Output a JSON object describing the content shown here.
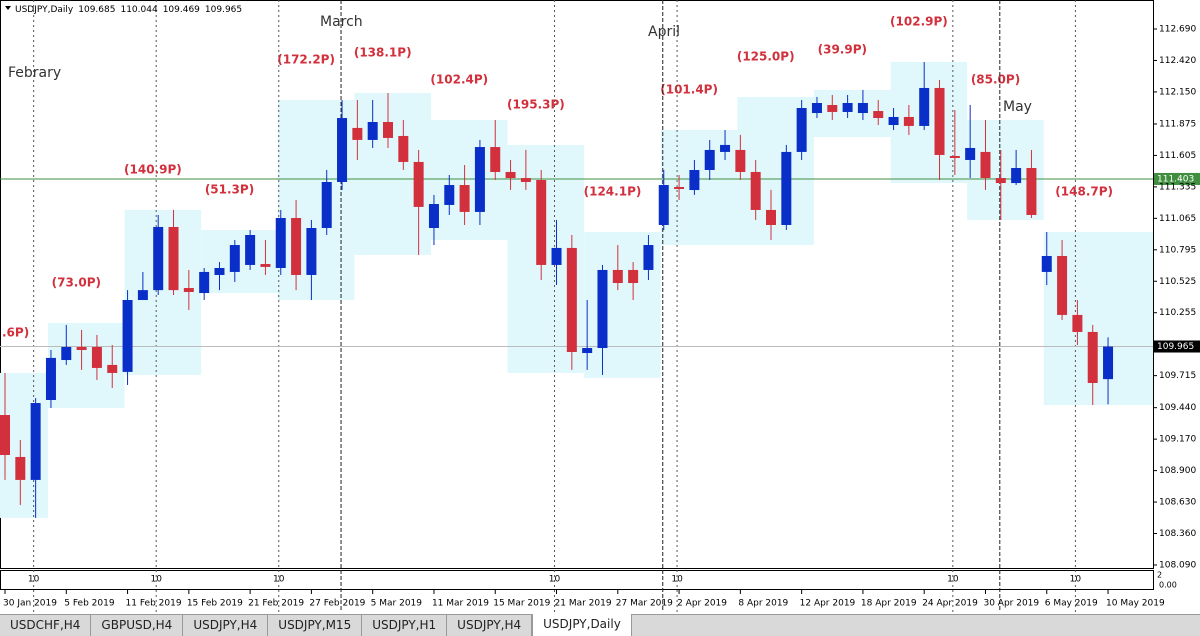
{
  "header": {
    "symbol": "USDJPY,Daily"
  },
  "chart_data": {
    "type": "candlestick",
    "categories": [
      "30 Jan 2019",
      null,
      null,
      null,
      "5 Feb 2019",
      null,
      null,
      null,
      "11 Feb 2019",
      null,
      null,
      null,
      "15 Feb 2019",
      null,
      null,
      null,
      "21 Feb 2019",
      null,
      null,
      null,
      "27 Feb 2019",
      null,
      null,
      null,
      "5 Mar 2019",
      null,
      null,
      null,
      "11 Mar 2019",
      null,
      null,
      null,
      "15 Mar 2019",
      null,
      null,
      null,
      "21 Mar 2019",
      null,
      null,
      null,
      "27 Mar 2019",
      null,
      null,
      null,
      "2 Apr 2019",
      null,
      null,
      null,
      "8 Apr 2019",
      null,
      null,
      null,
      "12 Apr 2019",
      null,
      null,
      null,
      "18 Apr 2019",
      null,
      null,
      null,
      "24 Apr 2019",
      null,
      null,
      null,
      "30 Apr 2019",
      null,
      null,
      null,
      "6 May 2019",
      null,
      null,
      null,
      "10 May 2019"
    ],
    "open": [
      109.377,
      109.017,
      108.82,
      109.506,
      109.849,
      109.961,
      109.961,
      109.807,
      109.747,
      110.364,
      110.449,
      110.991,
      110.467,
      110.424,
      110.579,
      110.605,
      110.665,
      110.673,
      110.639,
      111.068,
      110.579,
      110.982,
      111.377,
      111.841,
      111.738,
      111.892,
      111.772,
      111.549,
      110.982,
      111.18,
      111.351,
      111.12,
      111.677,
      111.463,
      111.411,
      111.394,
      110.665,
      110.811,
      109.909,
      109.952,
      110.622,
      110.622,
      110.622,
      111.008,
      111.334,
      111.308,
      111.48,
      111.635,
      111.652,
      111.463,
      111.137,
      111.008,
      111.635,
      111.969,
      112.038,
      111.978,
      111.969,
      111.986,
      111.866,
      111.935,
      111.858,
      112.184,
      111.6,
      111.566,
      111.635,
      111.411,
      111.368,
      111.497,
      110.605,
      110.742,
      110.236,
      110.09,
      109.685
    ],
    "high": [
      109.738,
      109.163,
      109.523,
      109.935,
      110.15,
      110.107,
      110.064,
      109.978,
      110.449,
      110.605,
      111.094,
      111.137,
      110.622,
      110.639,
      110.69,
      110.879,
      110.965,
      110.879,
      111.137,
      111.223,
      111.051,
      111.48,
      112.081,
      112.081,
      112.081,
      112.141,
      111.909,
      111.652,
      111.266,
      111.437,
      111.523,
      111.738,
      111.909,
      111.566,
      111.652,
      111.48,
      111.051,
      110.922,
      110.364,
      110.665,
      110.836,
      110.69,
      110.922,
      111.48,
      111.437,
      111.566,
      111.738,
      111.823,
      111.781,
      111.566,
      111.309,
      111.695,
      112.081,
      112.107,
      112.124,
      112.124,
      112.167,
      112.081,
      112.012,
      112.038,
      112.407,
      112.252,
      111.995,
      112.038,
      111.909,
      111.652,
      111.652,
      111.652,
      110.948,
      110.879,
      110.364,
      110.15,
      110.044
    ],
    "low": [
      108.82,
      108.605,
      108.494,
      109.437,
      109.807,
      109.764,
      109.678,
      109.609,
      109.635,
      110.364,
      110.407,
      110.407,
      110.279,
      110.364,
      110.449,
      110.519,
      110.622,
      110.579,
      110.579,
      110.449,
      110.364,
      110.922,
      111.309,
      111.566,
      111.669,
      111.669,
      111.48,
      110.751,
      110.836,
      111.094,
      111.008,
      111.008,
      111.394,
      111.309,
      111.309,
      110.536,
      110.493,
      109.764,
      109.764,
      109.721,
      110.449,
      110.364,
      110.536,
      110.965,
      111.223,
      111.266,
      111.394,
      111.566,
      111.394,
      111.051,
      110.879,
      110.965,
      111.566,
      111.926,
      111.909,
      111.926,
      111.909,
      111.866,
      111.823,
      111.781,
      111.823,
      111.394,
      111.437,
      111.411,
      111.309,
      111.051,
      111.351,
      111.068,
      110.493,
      110.193,
      109.978,
      109.463,
      109.469
    ],
    "close": [
      109.034,
      108.82,
      109.48,
      109.867,
      109.961,
      109.935,
      109.781,
      109.738,
      110.364,
      110.449,
      110.991,
      110.449,
      110.433,
      110.605,
      110.639,
      110.836,
      110.922,
      110.648,
      111.068,
      110.579,
      110.982,
      111.377,
      111.926,
      111.738,
      111.892,
      111.755,
      111.549,
      111.163,
      111.188,
      111.351,
      111.12,
      111.677,
      111.463,
      111.411,
      111.377,
      110.665,
      110.811,
      109.918,
      109.952,
      110.622,
      110.51,
      110.51,
      110.836,
      111.351,
      111.317,
      111.48,
      111.652,
      111.695,
      111.463,
      111.137,
      111.008,
      111.635,
      112.012,
      112.055,
      111.978,
      112.055,
      112.055,
      111.926,
      111.935,
      111.858,
      112.184,
      111.609,
      111.583,
      111.669,
      111.411,
      111.368,
      111.497,
      111.094,
      110.742,
      110.236,
      110.09,
      109.652,
      109.965
    ],
    "up_color": "#0a2ec8",
    "down_color": "#d2303c",
    "ylim": [
      108.064,
      112.939
    ],
    "yticks": [
      {
        "value": 112.69,
        "label": "112.690"
      },
      {
        "value": 112.42,
        "label": "112.420"
      },
      {
        "value": 112.15,
        "label": "112.150"
      },
      111.875,
      111.605,
      111.335,
      111.065,
      110.795,
      110.525,
      110.255,
      109.715,
      {
        "value": 109.44,
        "label": "109.440"
      },
      {
        "value": 109.17,
        "label": "109.170"
      },
      {
        "value": 108.9,
        "label": "108.900"
      },
      {
        "value": 108.63,
        "label": "108.630"
      },
      {
        "value": 108.36,
        "label": "108.360"
      },
      {
        "value": 108.09,
        "label": "108.090"
      }
    ],
    "hlines": [
      {
        "value": 111.403,
        "color": "#3f8f3f"
      }
    ],
    "period_labels": [
      "Febrary",
      "March",
      "April",
      "May"
    ],
    "annotations": [
      {
        "text": ".6P)",
        "high": 109.738,
        "low": 108.494
      },
      {
        "text": "(73.0P)",
        "high": 110.167,
        "low": 109.437
      },
      {
        "text": "(140.9P)",
        "high": 111.137,
        "low": 109.721
      },
      {
        "text": "(51.3P)",
        "high": 110.965,
        "low": 110.424
      },
      {
        "text": "(172.2P)",
        "high": 112.081,
        "low": 110.364
      },
      {
        "text": "(138.1P)",
        "high": 112.141,
        "low": 110.751
      },
      {
        "text": "(102.4P)",
        "high": 111.909,
        "low": 110.879
      },
      {
        "text": "(195.3P)",
        "high": 111.695,
        "low": 109.738
      },
      {
        "text": "(124.1P)",
        "high": 110.948,
        "low": 109.695
      },
      {
        "text": "(101.4P)",
        "high": 111.823,
        "low": 110.836
      },
      {
        "text": "(125.0P)",
        "high": 112.107,
        "low": 110.836
      },
      {
        "text": "(39.9P)",
        "high": 112.167,
        "low": 111.763
      },
      {
        "text": "(102.9P)",
        "high": 112.407,
        "low": 111.368
      },
      {
        "text": "(85.0P)",
        "high": 111.909,
        "low": 111.051
      },
      {
        "text": "(148.7P)",
        "high": 110.948,
        "low": 109.463
      }
    ],
    "subwindow": {
      "labels": [
        10,
        10,
        10,
        10,
        10,
        10,
        10
      ],
      "scale": [
        2,
        {
          "value": 0,
          "label": "0.00"
        }
      ]
    }
  },
  "tabs": [
    "USDCHF,H4",
    "GBPUSD,H4",
    "USDJPY,H4",
    "USDJPY,M15",
    "USDJPY,H1",
    "USDJPY,H4",
    "USDJPY,Daily"
  ]
}
